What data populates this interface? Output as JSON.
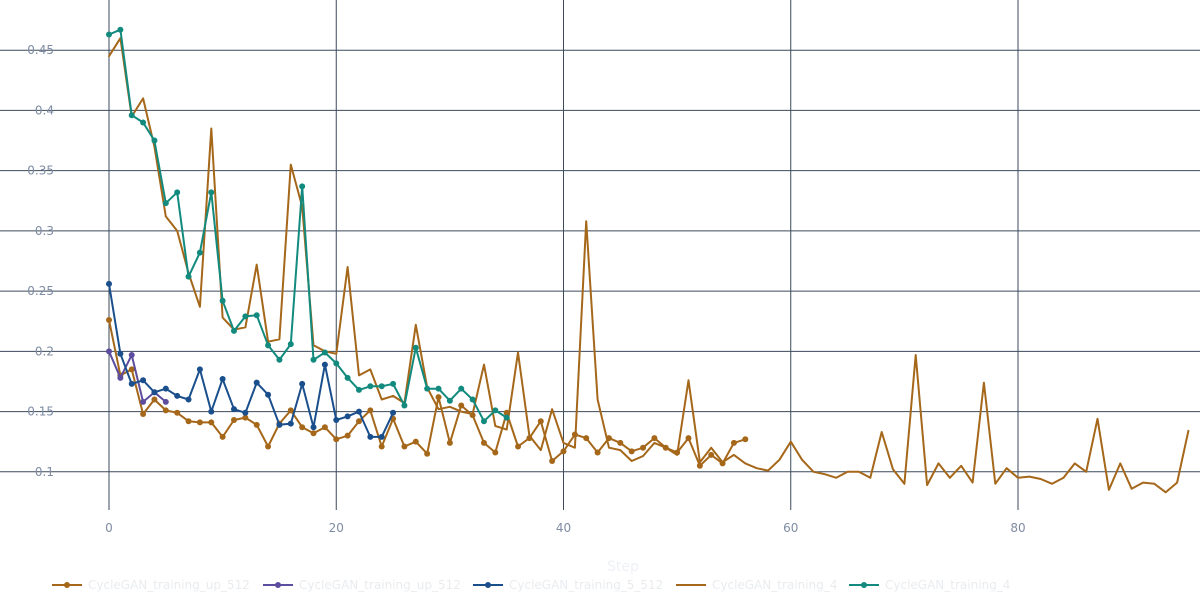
{
  "chart_data": {
    "type": "line",
    "title": "",
    "xlabel": "Step",
    "ylabel": "",
    "xlim": [
      -4,
      95
    ],
    "ylim": [
      0.065,
      0.485
    ],
    "x_ticks": [
      0,
      20,
      40,
      60,
      80
    ],
    "y_ticks": [
      0.1,
      0.15,
      0.2,
      0.25,
      0.3,
      0.35,
      0.4,
      0.45
    ],
    "y_tick_labels": [
      "0.1",
      "0.15",
      "0.2",
      "0.25",
      "0.3",
      "0.35",
      "0.4",
      "0.45"
    ],
    "grid": true,
    "legend_position": "bottom",
    "series": [
      {
        "name": "CycleGAN_training_up_512",
        "color": "#a5671a",
        "markers": true,
        "x": [
          0,
          1,
          2,
          3,
          4,
          5,
          6,
          7,
          8,
          9,
          10,
          11,
          12,
          13,
          14,
          15,
          16,
          17,
          18,
          19,
          20,
          21,
          22,
          23,
          24,
          25,
          26,
          27,
          28,
          29,
          30,
          31,
          32,
          33,
          34,
          35,
          36,
          37,
          38,
          39,
          40,
          41,
          42,
          43,
          44,
          45,
          46,
          47,
          48,
          49,
          50,
          51,
          52,
          53,
          54,
          55,
          56
        ],
        "y": [
          0.226,
          0.18,
          0.185,
          0.148,
          0.16,
          0.151,
          0.149,
          0.142,
          0.141,
          0.141,
          0.129,
          0.143,
          0.145,
          0.139,
          0.121,
          0.14,
          0.151,
          0.137,
          0.132,
          0.137,
          0.127,
          0.13,
          0.142,
          0.151,
          0.121,
          0.144,
          0.121,
          0.125,
          0.115,
          0.162,
          0.124,
          0.155,
          0.147,
          0.124,
          0.116,
          0.149,
          0.121,
          0.128,
          0.142,
          0.109,
          0.117,
          0.131,
          0.128,
          0.116,
          0.128,
          0.124,
          0.117,
          0.12,
          0.128,
          0.12,
          0.116,
          0.128,
          0.105,
          0.114,
          0.107,
          0.124,
          0.127
        ]
      },
      {
        "name": "CycleGAN_training_up_512",
        "color": "#5c4d9f",
        "markers": true,
        "x": [
          0,
          1,
          2,
          3,
          4,
          5
        ],
        "y": [
          0.2,
          0.178,
          0.197,
          0.158,
          0.166,
          0.158
        ]
      },
      {
        "name": "CycleGAN_training_5_512",
        "color": "#1a4f8c",
        "markers": true,
        "x": [
          0,
          1,
          2,
          3,
          4,
          5,
          6,
          7,
          8,
          9,
          10,
          11,
          12,
          13,
          14,
          15,
          16,
          17,
          18,
          19,
          20,
          21,
          22,
          23,
          24,
          25
        ],
        "y": [
          0.256,
          0.198,
          0.173,
          0.176,
          0.166,
          0.169,
          0.163,
          0.16,
          0.185,
          0.15,
          0.177,
          0.152,
          0.149,
          0.174,
          0.164,
          0.139,
          0.14,
          0.173,
          0.137,
          0.189,
          0.143,
          0.146,
          0.15,
          0.129,
          0.129,
          0.149
        ]
      },
      {
        "name": "CycleGAN_training_4",
        "color": "#a5671a",
        "markers": false,
        "x": [
          0,
          1,
          2,
          3,
          4,
          5,
          6,
          7,
          8,
          9,
          10,
          11,
          12,
          13,
          14,
          15,
          16,
          17,
          18,
          19,
          20,
          21,
          22,
          23,
          24,
          25,
          26,
          27,
          28,
          29,
          30,
          31,
          32,
          33,
          34,
          35,
          36,
          37,
          38,
          39,
          40,
          41,
          42,
          43,
          44,
          45,
          46,
          47,
          48,
          49,
          50,
          51,
          52,
          53,
          54,
          55,
          56,
          57,
          58,
          59,
          60,
          61,
          62,
          63,
          64,
          65,
          66,
          67,
          68,
          69,
          70,
          71,
          72,
          73,
          74,
          75,
          76,
          77,
          78,
          79,
          80,
          81,
          82,
          83,
          84,
          85,
          86,
          87,
          88,
          89,
          90,
          91,
          92,
          93,
          94,
          95
        ],
        "y": [
          0.445,
          0.46,
          0.395,
          0.41,
          0.37,
          0.312,
          0.3,
          0.265,
          0.237,
          0.385,
          0.228,
          0.218,
          0.22,
          0.272,
          0.208,
          0.21,
          0.355,
          0.32,
          0.205,
          0.2,
          0.198,
          0.27,
          0.18,
          0.185,
          0.16,
          0.163,
          0.157,
          0.222,
          0.17,
          0.152,
          0.154,
          0.15,
          0.148,
          0.189,
          0.138,
          0.135,
          0.199,
          0.13,
          0.118,
          0.152,
          0.124,
          0.12,
          0.308,
          0.16,
          0.12,
          0.118,
          0.109,
          0.113,
          0.124,
          0.12,
          0.114,
          0.176,
          0.108,
          0.12,
          0.108,
          0.114,
          0.107,
          0.103,
          0.101,
          0.11,
          0.125,
          0.11,
          0.1,
          0.098,
          0.095,
          0.1,
          0.1,
          0.095,
          0.133,
          0.102,
          0.09,
          0.197,
          0.089,
          0.107,
          0.095,
          0.105,
          0.091,
          0.174,
          0.09,
          0.103,
          0.095,
          0.096,
          0.094,
          0.09,
          0.095,
          0.107,
          0.1,
          0.144,
          0.085,
          0.107,
          0.086,
          0.091,
          0.09,
          0.083,
          0.091,
          0.134
        ]
      },
      {
        "name": "CycleGAN_training_4",
        "color": "#128a7e",
        "markers": true,
        "x": [
          0,
          1,
          2,
          3,
          4,
          5,
          6,
          7,
          8,
          9,
          10,
          11,
          12,
          13,
          14,
          15,
          16,
          17,
          18,
          19,
          20,
          21,
          22,
          23,
          24,
          25,
          26,
          27,
          28,
          29,
          30,
          31,
          32,
          33,
          34,
          35
        ],
        "y": [
          0.463,
          0.467,
          0.396,
          0.39,
          0.375,
          0.323,
          0.332,
          0.262,
          0.282,
          0.332,
          0.242,
          0.217,
          0.229,
          0.23,
          0.205,
          0.193,
          0.206,
          0.337,
          0.193,
          0.199,
          0.19,
          0.178,
          0.168,
          0.171,
          0.171,
          0.173,
          0.155,
          0.203,
          0.169,
          0.169,
          0.159,
          0.169,
          0.16,
          0.142,
          0.151,
          0.145
        ]
      }
    ]
  }
}
